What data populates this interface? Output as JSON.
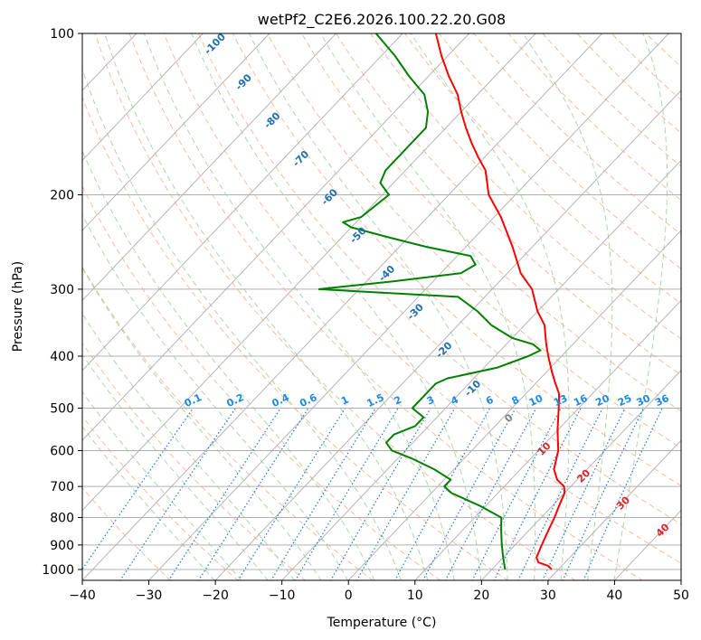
{
  "chart_data": {
    "type": "line",
    "title": "wetPf2_C2E6.2026.100.22.20.G08",
    "xlabel": "Temperature (°C)",
    "ylabel": "Pressure (hPa)",
    "xlim": [
      -40,
      50
    ],
    "ylim": [
      1050,
      100
    ],
    "x_ticks": [
      "−40",
      "−30",
      "−20",
      "−10",
      "0",
      "10",
      "20",
      "30",
      "40",
      "50"
    ],
    "y_ticks": [
      "1000",
      "900",
      "800",
      "700",
      "600",
      "500",
      "400",
      "300",
      "200",
      "100"
    ],
    "series": [
      {
        "name": "Temperature",
        "color": "#ff0000",
        "points": [
          [
            1000,
            29
          ],
          [
            985,
            28
          ],
          [
            970,
            26
          ],
          [
            950,
            25
          ],
          [
            900,
            24
          ],
          [
            850,
            23
          ],
          [
            800,
            22
          ],
          [
            760,
            21
          ],
          [
            720,
            20
          ],
          [
            700,
            19
          ],
          [
            680,
            17
          ],
          [
            650,
            15
          ],
          [
            600,
            13
          ],
          [
            550,
            10
          ],
          [
            500,
            7
          ],
          [
            470,
            5
          ],
          [
            450,
            3
          ],
          [
            430,
            1
          ],
          [
            400,
            -2
          ],
          [
            380,
            -4
          ],
          [
            350,
            -7
          ],
          [
            330,
            -10
          ],
          [
            300,
            -14
          ],
          [
            280,
            -18
          ],
          [
            250,
            -23
          ],
          [
            220,
            -29
          ],
          [
            200,
            -34
          ],
          [
            180,
            -38
          ],
          [
            170,
            -41
          ],
          [
            160,
            -44
          ],
          [
            150,
            -47
          ],
          [
            140,
            -50
          ],
          [
            130,
            -53
          ],
          [
            120,
            -57
          ],
          [
            110,
            -61
          ],
          [
            100,
            -65
          ]
        ]
      },
      {
        "name": "Dewpoint",
        "color": "#008000",
        "points": [
          [
            1000,
            22
          ],
          [
            950,
            20
          ],
          [
            900,
            18
          ],
          [
            850,
            16
          ],
          [
            800,
            14
          ],
          [
            760,
            9
          ],
          [
            720,
            3
          ],
          [
            700,
            1
          ],
          [
            680,
            1
          ],
          [
            650,
            -3
          ],
          [
            620,
            -8
          ],
          [
            600,
            -12
          ],
          [
            580,
            -14
          ],
          [
            560,
            -14
          ],
          [
            540,
            -12
          ],
          [
            520,
            -12
          ],
          [
            500,
            -15
          ],
          [
            480,
            -15
          ],
          [
            460,
            -15
          ],
          [
            450,
            -15
          ],
          [
            440,
            -14
          ],
          [
            420,
            -8
          ],
          [
            400,
            -5
          ],
          [
            390,
            -4
          ],
          [
            380,
            -6
          ],
          [
            370,
            -10
          ],
          [
            350,
            -15
          ],
          [
            330,
            -19
          ],
          [
            310,
            -24
          ],
          [
            300,
            -46
          ],
          [
            290,
            -36
          ],
          [
            280,
            -27
          ],
          [
            270,
            -26
          ],
          [
            260,
            -28
          ],
          [
            250,
            -36
          ],
          [
            240,
            -43
          ],
          [
            230,
            -50
          ],
          [
            225,
            -52
          ],
          [
            220,
            -50
          ],
          [
            200,
            -49
          ],
          [
            190,
            -52
          ],
          [
            180,
            -53
          ],
          [
            170,
            -53
          ],
          [
            160,
            -53
          ],
          [
            150,
            -53
          ],
          [
            140,
            -55
          ],
          [
            130,
            -58
          ],
          [
            120,
            -63
          ],
          [
            110,
            -68
          ],
          [
            100,
            -74
          ]
        ]
      }
    ],
    "background_lines": {
      "isotherms": true,
      "dry_adiabats": true,
      "moist_adiabats": true,
      "mixing_ratio_lines": true
    },
    "annotations": {
      "isotherm_labels": [
        "-100",
        "-90",
        "-80",
        "-70",
        "-60",
        "-50",
        "-40",
        "-30",
        "-20",
        "-10"
      ],
      "mixing_ratio_labels": [
        "0.1",
        "0.2",
        "0.4",
        "0.6",
        "1",
        "1.5",
        "2",
        "3",
        "4",
        "6",
        "8",
        "10",
        "13",
        "16",
        "20",
        "25",
        "30",
        "36"
      ],
      "zero_label": "0",
      "warm_labels": [
        "10",
        "20",
        "30",
        "40"
      ]
    }
  },
  "colors": {
    "isotherm": "#b5b5b5",
    "dry_adiabat": "#f4a582",
    "moist_adiabat": "#98cc98",
    "mixing_ratio": "#1f77d0",
    "isotherm_label": "#1f6fb0",
    "mixing_label": "#1e88e5",
    "warm_label": "#d62728",
    "zero_label": "#808080",
    "grid": "#b0b0b0"
  }
}
